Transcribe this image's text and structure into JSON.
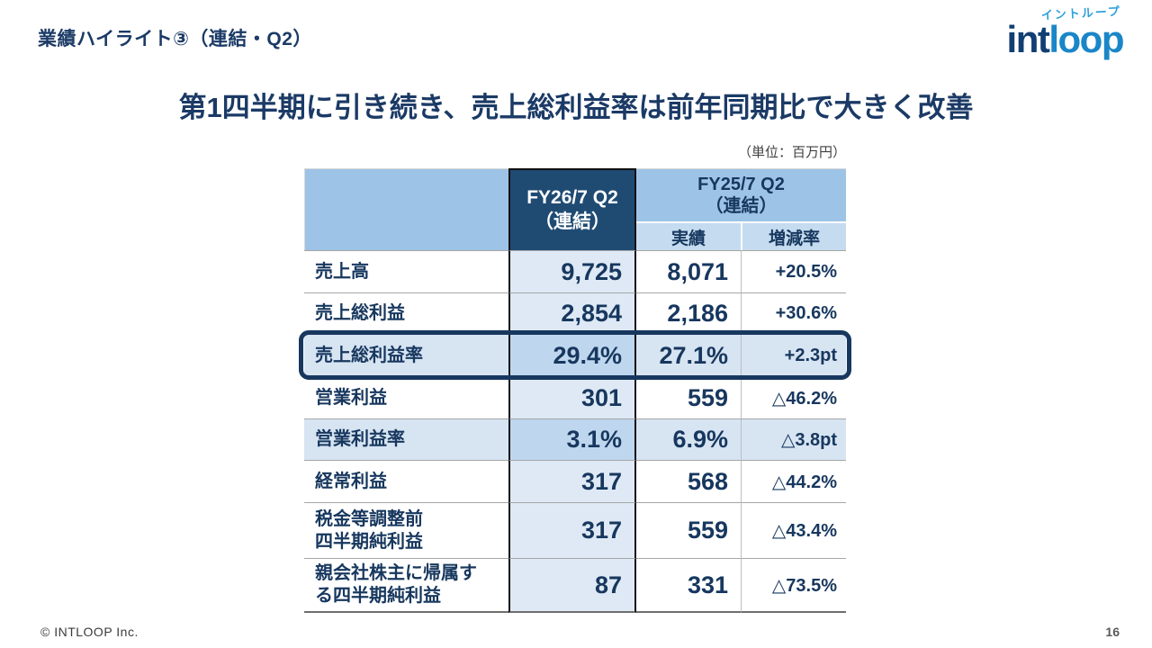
{
  "slide": {
    "title": "業績ハイライト③（連結・Q2）",
    "headline": "第1四半期に引き続き、売上総利益率は前年同期比で大きく改善",
    "unit_note": "（単位：百万円）",
    "footer_copyright": "© INTLOOP Inc.",
    "page_number": "16"
  },
  "logo": {
    "katakana": "イントループ",
    "wordmark_left": "int",
    "wordmark_right": "loop",
    "color_dark": "#123e73",
    "color_light": "#1a86c8",
    "color_katakana": "#2ba0db"
  },
  "table": {
    "col_fy26": {
      "line1": "FY26/7 Q2",
      "line2": "（連結）"
    },
    "col_fy25": {
      "line1": "FY25/7 Q2",
      "line2": "（連結）"
    },
    "subcol_actual": "実績",
    "subcol_change": "増減率",
    "rows": [
      {
        "label": "売上高",
        "fy26": "9,725",
        "fy25": "8,071",
        "change": "+20.5%",
        "style": "normal"
      },
      {
        "label": "売上総利益",
        "fy26": "2,854",
        "fy25": "2,186",
        "change": "+30.6%",
        "style": "normal"
      },
      {
        "label": "売上総利益率",
        "fy26": "29.4%",
        "fy25": "27.1%",
        "change": "+2.3pt",
        "style": "boxed"
      },
      {
        "label": "営業利益",
        "fy26": "301",
        "fy25": "559",
        "change": "△46.2%",
        "style": "normal"
      },
      {
        "label": "営業利益率",
        "fy26": "3.1%",
        "fy25": "6.9%",
        "change": "△3.8pt",
        "style": "shaded"
      },
      {
        "label": "経常利益",
        "fy26": "317",
        "fy25": "568",
        "change": "△44.2%",
        "style": "normal"
      },
      {
        "label": "税金等調整前\n四半期純利益",
        "fy26": "317",
        "fy25": "559",
        "change": "△43.4%",
        "style": "normal"
      },
      {
        "label": "親会社株主に帰属す\nる四半期純利益",
        "fy26": "87",
        "fy25": "331",
        "change": "△73.5%",
        "style": "normal"
      }
    ]
  },
  "colors": {
    "text_navy": "#17375e",
    "header_blue": "#9dc3e6",
    "subheader_blue": "#c5dbef",
    "fy26_header_bg": "#1f4b73",
    "fy26_cell_bg": "#dee9f5",
    "shaded_row_bg": "#d7e4f2",
    "shaded_fy26_bg": "#bed7ee",
    "highlight_border": "#17375e"
  }
}
